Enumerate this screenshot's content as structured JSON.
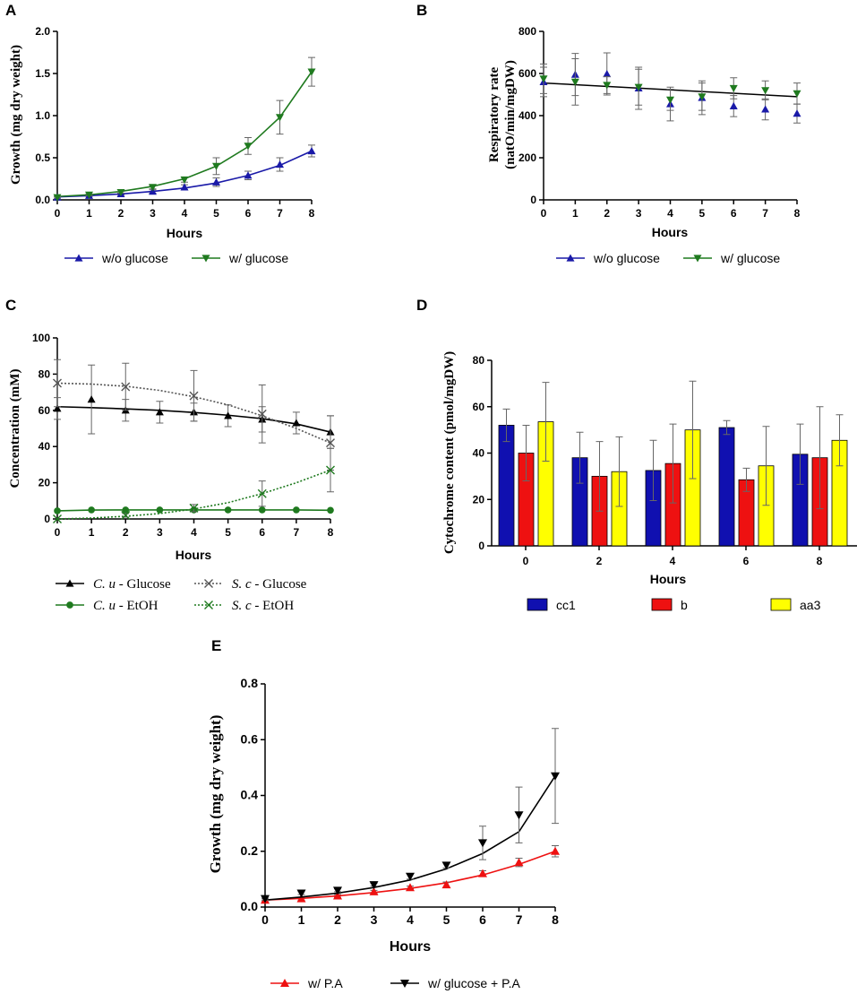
{
  "colors": {
    "blue": "#1a1aa8",
    "green": "#1f7a1f",
    "red": "#ee1111",
    "yellow": "#ffff00",
    "black": "#000000",
    "err": "#666666"
  },
  "chart_data": [
    {
      "id": "A",
      "panel": "A",
      "type": "line",
      "title": "",
      "xlabel": "Hours",
      "ylabel": "Growth (mg dry weight)",
      "xlim": [
        0,
        8
      ],
      "ylim": [
        0,
        2.0
      ],
      "xticks": [
        "0",
        "1",
        "2",
        "3",
        "4",
        "5",
        "6",
        "7",
        "8"
      ],
      "yticks": [
        "0.0",
        "0.5",
        "1.0",
        "1.5",
        "2.0"
      ],
      "x": [
        0,
        1,
        2,
        3,
        4,
        5,
        6,
        7,
        8
      ],
      "series": [
        {
          "name": "w/o glucose",
          "color": "#1a1aa8",
          "marker": "tri-up",
          "values": [
            0.03,
            0.05,
            0.07,
            0.1,
            0.15,
            0.21,
            0.29,
            0.42,
            0.58
          ],
          "errors": [
            0.01,
            0.01,
            0.01,
            0.02,
            0.03,
            0.05,
            0.05,
            0.08,
            0.07
          ],
          "fit": [
            0.035,
            0.05,
            0.07,
            0.1,
            0.14,
            0.2,
            0.29,
            0.41,
            0.58
          ]
        },
        {
          "name": "w/ glucose",
          "color": "#1f7a1f",
          "marker": "tri-down",
          "values": [
            0.03,
            0.06,
            0.09,
            0.15,
            0.24,
            0.4,
            0.64,
            0.98,
            1.52
          ],
          "errors": [
            0.01,
            0.01,
            0.01,
            0.02,
            0.03,
            0.1,
            0.1,
            0.2,
            0.17
          ],
          "fit": [
            0.04,
            0.06,
            0.1,
            0.16,
            0.25,
            0.4,
            0.63,
            0.98,
            1.52
          ]
        }
      ],
      "legend": [
        {
          "label": "w/o glucose",
          "color": "#1a1aa8",
          "marker": "tri-up"
        },
        {
          "label": "w/ glucose",
          "color": "#1f7a1f",
          "marker": "tri-down"
        }
      ]
    },
    {
      "id": "B",
      "panel": "B",
      "type": "scatter",
      "title": "",
      "xlabel": "Hours",
      "ylabel": "Respiratory rate",
      "ylabel2": "(natO/min/mgDW)",
      "xlim": [
        0,
        8
      ],
      "ylim": [
        0,
        800
      ],
      "xticks": [
        "0",
        "1",
        "2",
        "3",
        "4",
        "5",
        "6",
        "7",
        "8"
      ],
      "yticks": [
        "0",
        "200",
        "400",
        "600",
        "800"
      ],
      "x": [
        0,
        1,
        2,
        3,
        4,
        5,
        6,
        7,
        8
      ],
      "series": [
        {
          "name": "w/o glucose",
          "color": "#1a1aa8",
          "marker": "tri-up",
          "values": [
            560,
            595,
            598,
            530,
            455,
            485,
            445,
            430,
            410
          ],
          "errors": [
            70,
            100,
            100,
            100,
            80,
            80,
            50,
            50,
            45
          ]
        },
        {
          "name": "w/ glucose",
          "color": "#1f7a1f",
          "marker": "tri-down",
          "values": [
            575,
            560,
            545,
            535,
            475,
            490,
            530,
            520,
            505
          ],
          "errors": [
            70,
            110,
            40,
            85,
            50,
            65,
            50,
            45,
            50
          ]
        }
      ],
      "trendline": {
        "from": 555,
        "to": 490
      },
      "legend": [
        {
          "label": "w/o glucose",
          "color": "#1a1aa8",
          "marker": "tri-up"
        },
        {
          "label": "w/ glucose",
          "color": "#1f7a1f",
          "marker": "tri-down"
        }
      ]
    },
    {
      "id": "C",
      "panel": "C",
      "type": "line",
      "title": "",
      "xlabel": "Hours",
      "ylabel": "Concentration (mM)",
      "xlim": [
        0,
        8
      ],
      "ylim": [
        0,
        100
      ],
      "xticks": [
        "0",
        "1",
        "2",
        "3",
        "4",
        "5",
        "6",
        "7",
        "8"
      ],
      "yticks": [
        "0",
        "20",
        "40",
        "60",
        "80",
        "100"
      ],
      "series": [
        {
          "name": "C. u - Glucose",
          "color": "#000000",
          "marker": "tri-up",
          "dash": "none",
          "x": [
            0,
            1,
            2,
            3,
            4,
            5,
            6,
            7,
            8
          ],
          "values": [
            61,
            66,
            60,
            59,
            59,
            57,
            55,
            53,
            48
          ],
          "errors": [
            6,
            19,
            6,
            6,
            5,
            6,
            7,
            6,
            9
          ],
          "fit": [
            62,
            61.5,
            60.8,
            60,
            58.8,
            57.3,
            55.4,
            52.5,
            48
          ]
        },
        {
          "name": "C. u - EtOH",
          "color": "#1f7a1f",
          "marker": "circle",
          "dash": "none",
          "x": [
            0,
            1,
            2,
            3,
            4,
            5,
            6,
            7,
            8
          ],
          "values": [
            4.5,
            5,
            5,
            5,
            5,
            5,
            5,
            5,
            4.8
          ],
          "errors": [
            0,
            0,
            0,
            0,
            0,
            0,
            0,
            0,
            0
          ],
          "fit": [
            4.5,
            4.9,
            5,
            5,
            5,
            5,
            5,
            5,
            4.8
          ]
        },
        {
          "name": "S. c - Glucose",
          "color": "#555555",
          "marker": "x",
          "dash": "2,2",
          "x": [
            0,
            2,
            4,
            6,
            8
          ],
          "values": [
            75,
            73,
            68,
            58,
            42
          ],
          "errors": [
            13,
            13,
            14,
            16,
            15
          ],
          "fit": [
            75,
            74.5,
            73.3,
            71,
            67.5,
            63,
            57,
            50,
            42
          ]
        },
        {
          "name": "S. c - EtOH",
          "color": "#1f7a1f",
          "marker": "x",
          "dash": "2,2",
          "x": [
            0,
            2,
            4,
            6,
            8
          ],
          "values": [
            0,
            2,
            6,
            14,
            27
          ],
          "errors": [
            0,
            1,
            2,
            7,
            12
          ],
          "fit": [
            0,
            0.5,
            1.5,
            3,
            5.5,
            9,
            14,
            20,
            27
          ]
        }
      ],
      "legend": [
        {
          "label_italic": "C. u",
          "label_rest": " - Glucose",
          "color": "#000000",
          "marker": "tri-up",
          "dash": "none"
        },
        {
          "label_italic": "S. c",
          "label_rest": " - Glucose",
          "color": "#555555",
          "marker": "x",
          "dash": "2,2"
        },
        {
          "label_italic": "C. u",
          "label_rest": " - EtOH",
          "color": "#1f7a1f",
          "marker": "circle",
          "dash": "none"
        },
        {
          "label_italic": "S. c",
          "label_rest": " - EtOH",
          "color": "#1f7a1f",
          "marker": "x",
          "dash": "2,2"
        }
      ]
    },
    {
      "id": "D",
      "panel": "D",
      "type": "bar",
      "title": "",
      "xlabel": "Hours",
      "ylabel": "Cytochrome content (pmol/mgDW)",
      "ylim": [
        0,
        80
      ],
      "categories": [
        "0",
        "2",
        "4",
        "6",
        "8"
      ],
      "yticks": [
        "0",
        "20",
        "40",
        "60",
        "80"
      ],
      "series": [
        {
          "name": "cc1",
          "color": "#1010b0",
          "values": [
            52,
            38,
            32.5,
            51,
            39.5
          ],
          "errors": [
            7,
            11,
            13,
            3,
            13
          ]
        },
        {
          "name": "b",
          "color": "#ee1111",
          "values": [
            40,
            30,
            35.5,
            28.5,
            38
          ],
          "errors": [
            12,
            15,
            17,
            5,
            22
          ]
        },
        {
          "name": "aa3",
          "color": "#ffff00",
          "values": [
            53.5,
            32,
            50,
            34.5,
            45.5
          ],
          "errors": [
            17,
            15,
            21,
            17,
            11
          ]
        }
      ],
      "legend": [
        {
          "label": "cc1",
          "color": "#1010b0"
        },
        {
          "label": "b",
          "color": "#ee1111"
        },
        {
          "label": "aa3",
          "color": "#ffff00"
        }
      ]
    },
    {
      "id": "E",
      "panel": "E",
      "type": "line",
      "title": "",
      "xlabel": "Hours",
      "ylabel": "Growth (mg dry weight)",
      "xlim": [
        0,
        8
      ],
      "ylim": [
        0,
        0.8
      ],
      "xticks": [
        "0",
        "1",
        "2",
        "3",
        "4",
        "5",
        "6",
        "7",
        "8"
      ],
      "yticks": [
        "0.0",
        "0.2",
        "0.4",
        "0.6",
        "0.8"
      ],
      "x": [
        0,
        1,
        2,
        3,
        4,
        5,
        6,
        7,
        8
      ],
      "series": [
        {
          "name": "w/ P.A",
          "color": "#ee1111",
          "marker": "tri-up",
          "values": [
            0.025,
            0.03,
            0.04,
            0.055,
            0.07,
            0.08,
            0.12,
            0.16,
            0.2
          ],
          "errors": [
            0.005,
            0.005,
            0.005,
            0.005,
            0.005,
            0.01,
            0.01,
            0.015,
            0.02
          ],
          "fit": [
            0.025,
            0.031,
            0.04,
            0.052,
            0.067,
            0.087,
            0.115,
            0.153,
            0.2
          ]
        },
        {
          "name": "w/ glucose + P.A",
          "color": "#000000",
          "marker": "tri-down",
          "values": [
            0.03,
            0.05,
            0.06,
            0.08,
            0.11,
            0.15,
            0.23,
            0.33,
            0.47
          ],
          "errors": [
            0.005,
            0.005,
            0.005,
            0.005,
            0.01,
            0.01,
            0.06,
            0.1,
            0.17
          ],
          "fit": [
            0.025,
            0.036,
            0.05,
            0.07,
            0.097,
            0.137,
            0.192,
            0.27,
            0.47
          ]
        }
      ],
      "legend": [
        {
          "label": "w/ P.A",
          "color": "#ee1111",
          "marker": "tri-up"
        },
        {
          "label": "w/ glucose + P.A",
          "color": "#000000",
          "marker": "tri-down"
        }
      ]
    }
  ]
}
